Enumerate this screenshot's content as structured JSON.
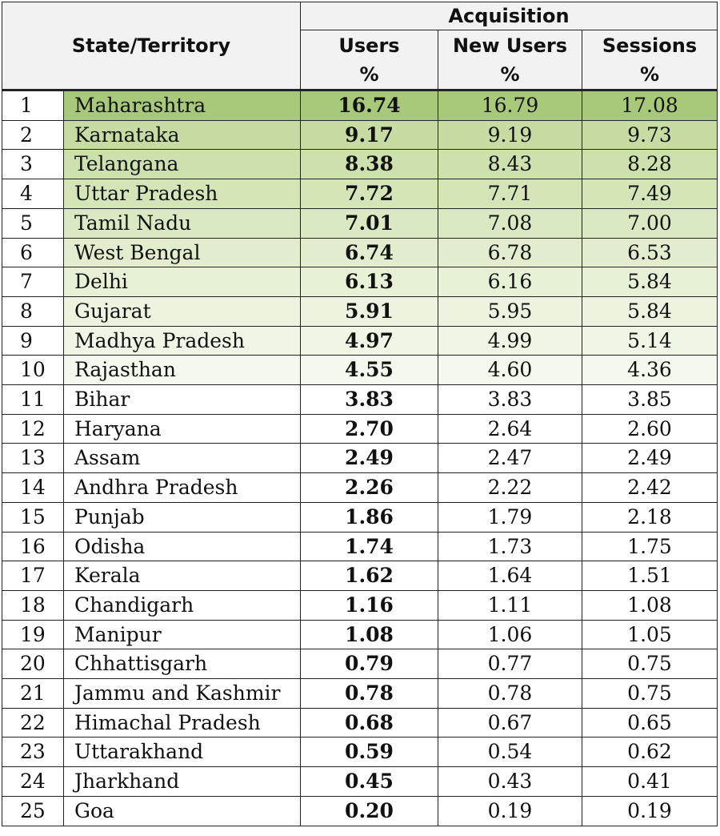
{
  "header": {
    "state_label": "State/Territory",
    "group_label": "Acquisition",
    "columns": [
      {
        "line1": "Users",
        "line2": "%"
      },
      {
        "line1": "New Users",
        "line2": "%"
      },
      {
        "line1": "Sessions",
        "line2": "%"
      }
    ]
  },
  "colors": {
    "header_bg": "#f2f2f2",
    "top_rank_green": "#a9c97a",
    "fade_green_light": "#f4f9ee"
  },
  "rows": [
    {
      "rank": "1",
      "state": "Maharashtra",
      "users": "16.74",
      "new_users": "16.79",
      "sessions": "17.08"
    },
    {
      "rank": "2",
      "state": "Karnataka",
      "users": "9.17",
      "new_users": "9.19",
      "sessions": "9.73"
    },
    {
      "rank": "3",
      "state": "Telangana",
      "users": "8.38",
      "new_users": "8.43",
      "sessions": "8.28"
    },
    {
      "rank": "4",
      "state": "Uttar Pradesh",
      "users": "7.72",
      "new_users": "7.71",
      "sessions": "7.49"
    },
    {
      "rank": "5",
      "state": "Tamil Nadu",
      "users": "7.01",
      "new_users": "7.08",
      "sessions": "7.00"
    },
    {
      "rank": "6",
      "state": "West Bengal",
      "users": "6.74",
      "new_users": "6.78",
      "sessions": "6.53"
    },
    {
      "rank": "7",
      "state": "Delhi",
      "users": "6.13",
      "new_users": "6.16",
      "sessions": "5.84"
    },
    {
      "rank": "8",
      "state": "Gujarat",
      "users": "5.91",
      "new_users": "5.95",
      "sessions": "5.84"
    },
    {
      "rank": "9",
      "state": "Madhya Pradesh",
      "users": "4.97",
      "new_users": "4.99",
      "sessions": "5.14"
    },
    {
      "rank": "10",
      "state": "Rajasthan",
      "users": "4.55",
      "new_users": "4.60",
      "sessions": "4.36"
    },
    {
      "rank": "11",
      "state": "Bihar",
      "users": "3.83",
      "new_users": "3.83",
      "sessions": "3.85"
    },
    {
      "rank": "12",
      "state": "Haryana",
      "users": "2.70",
      "new_users": "2.64",
      "sessions": "2.60"
    },
    {
      "rank": "13",
      "state": "Assam",
      "users": "2.49",
      "new_users": "2.47",
      "sessions": "2.49"
    },
    {
      "rank": "14",
      "state": "Andhra Pradesh",
      "users": "2.26",
      "new_users": "2.22",
      "sessions": "2.42"
    },
    {
      "rank": "15",
      "state": "Punjab",
      "users": "1.86",
      "new_users": "1.79",
      "sessions": "2.18"
    },
    {
      "rank": "16",
      "state": "Odisha",
      "users": "1.74",
      "new_users": "1.73",
      "sessions": "1.75"
    },
    {
      "rank": "17",
      "state": "Kerala",
      "users": "1.62",
      "new_users": "1.64",
      "sessions": "1.51"
    },
    {
      "rank": "18",
      "state": "Chandigarh",
      "users": "1.16",
      "new_users": "1.11",
      "sessions": "1.08"
    },
    {
      "rank": "19",
      "state": "Manipur",
      "users": "1.08",
      "new_users": "1.06",
      "sessions": "1.05"
    },
    {
      "rank": "20",
      "state": "Chhattisgarh",
      "users": "0.79",
      "new_users": "0.77",
      "sessions": "0.75"
    },
    {
      "rank": "21",
      "state": "Jammu and Kashmir",
      "users": "0.78",
      "new_users": "0.78",
      "sessions": "0.75"
    },
    {
      "rank": "22",
      "state": "Himachal Pradesh",
      "users": "0.68",
      "new_users": "0.67",
      "sessions": "0.65"
    },
    {
      "rank": "23",
      "state": "Uttarakhand",
      "users": "0.59",
      "new_users": "0.54",
      "sessions": "0.62"
    },
    {
      "rank": "24",
      "state": "Jharkhand",
      "users": "0.45",
      "new_users": "0.43",
      "sessions": "0.41"
    },
    {
      "rank": "25",
      "state": "Goa",
      "users": "0.20",
      "new_users": "0.19",
      "sessions": "0.19"
    }
  ]
}
